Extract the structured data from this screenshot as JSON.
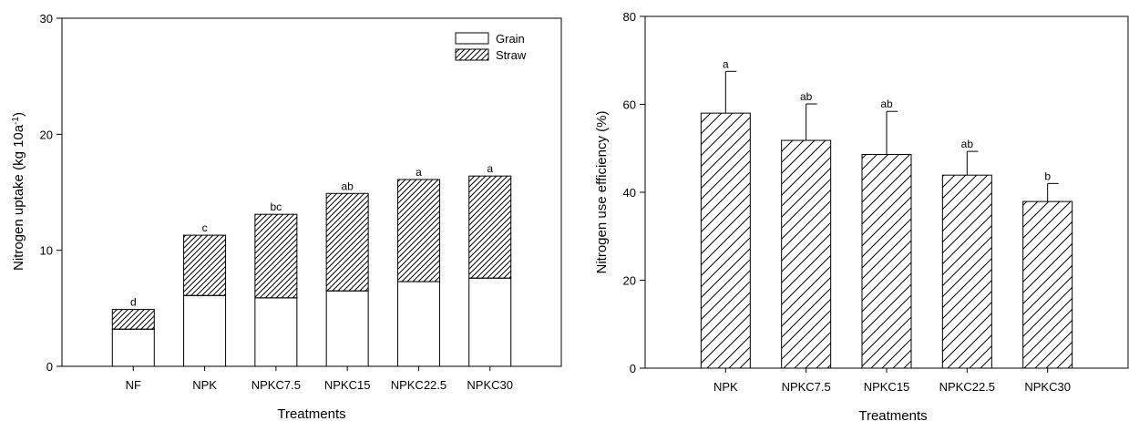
{
  "chart_data": [
    {
      "type": "bar",
      "stacked": true,
      "categories": [
        "NF",
        "NPK",
        "NPKC7.5",
        "NPKC15",
        "NPKC22.5",
        "NPKC30"
      ],
      "series": [
        {
          "name": "Grain",
          "values": [
            3.2,
            6.1,
            5.9,
            6.5,
            7.3,
            7.6
          ],
          "pattern": "solid-white"
        },
        {
          "name": "Straw",
          "values": [
            1.7,
            5.2,
            7.2,
            8.4,
            8.8,
            8.8
          ],
          "pattern": "dense-hatch"
        }
      ],
      "totals": [
        4.9,
        11.3,
        13.1,
        14.9,
        16.1,
        16.4
      ],
      "significance": [
        "d",
        "c",
        "bc",
        "ab",
        "a",
        "a"
      ],
      "xlabel": "Treatments",
      "ylabel": "Nitrogen uptake (kg 10a",
      "ylabel_sup": "-1",
      "ylabel_tail": ")",
      "ylim": [
        0,
        30
      ],
      "yticks": [
        "0",
        "10",
        "20",
        "30"
      ],
      "legend_position": "top-right",
      "grid": false
    },
    {
      "type": "bar",
      "categories": [
        "NPK",
        "NPKC7.5",
        "NPKC15",
        "NPKC22.5",
        "NPKC30"
      ],
      "values": [
        58.0,
        51.8,
        48.6,
        43.9,
        37.9
      ],
      "errors": [
        9.5,
        8.3,
        9.8,
        5.4,
        4.1
      ],
      "significance": [
        "a",
        "ab",
        "ab",
        "ab",
        "b"
      ],
      "xlabel": "Treatments",
      "ylabel": "Nitrogen use efficiency (%)",
      "ylim": [
        0,
        80
      ],
      "yticks": [
        "0",
        "20",
        "40",
        "60",
        "80"
      ],
      "pattern": "sparse-hatch",
      "grid": false
    }
  ]
}
